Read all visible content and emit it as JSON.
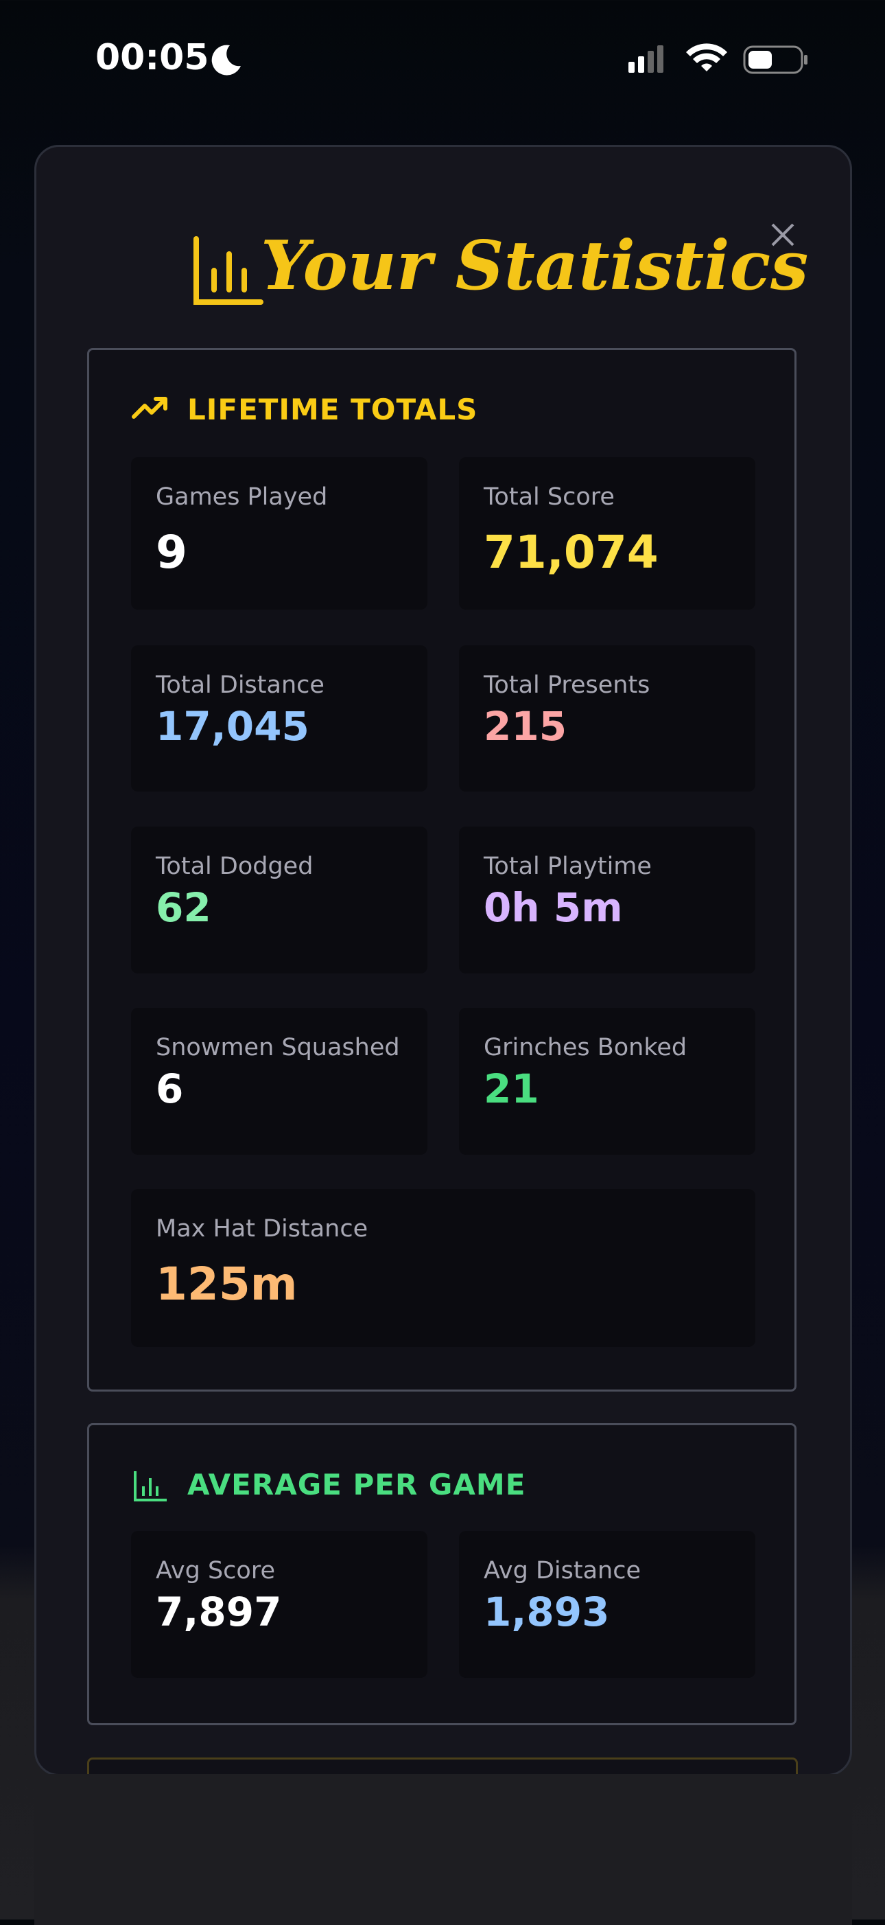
{
  "status_bar": {
    "time": "00:05"
  },
  "title": "Your Statistics",
  "sections": [
    {
      "heading": "LIFETIME TOTALS",
      "color": "#facc15",
      "items": [
        {
          "label": "Games Played",
          "value": "9",
          "color": "#ffffff"
        },
        {
          "label": "Total Score",
          "value": "71,074",
          "color": "#fde047"
        },
        {
          "label": "Total Distance",
          "value": "17,045",
          "color": "#93c5fd"
        },
        {
          "label": "Total Presents",
          "value": "215",
          "color": "#fca5a5"
        },
        {
          "label": "Total Dodged",
          "value": "62",
          "color": "#86efac"
        },
        {
          "label": "Total Playtime",
          "value": "0h 5m",
          "color": "#d8b4fe"
        },
        {
          "label": "Snowmen Squashed",
          "value": "6",
          "color": "#ffffff"
        },
        {
          "label": "Grinches Bonked",
          "value": "21",
          "color": "#4ade80"
        },
        {
          "label": "Max Hat Distance",
          "value": "125m",
          "color": "#fdba74"
        }
      ]
    },
    {
      "heading": "AVERAGE PER GAME",
      "color": "#4ade80",
      "items": [
        {
          "label": "Avg Score",
          "value": "7,897",
          "color": "#ffffff"
        },
        {
          "label": "Avg Distance",
          "value": "1,893",
          "color": "#93c5fd"
        }
      ]
    }
  ]
}
